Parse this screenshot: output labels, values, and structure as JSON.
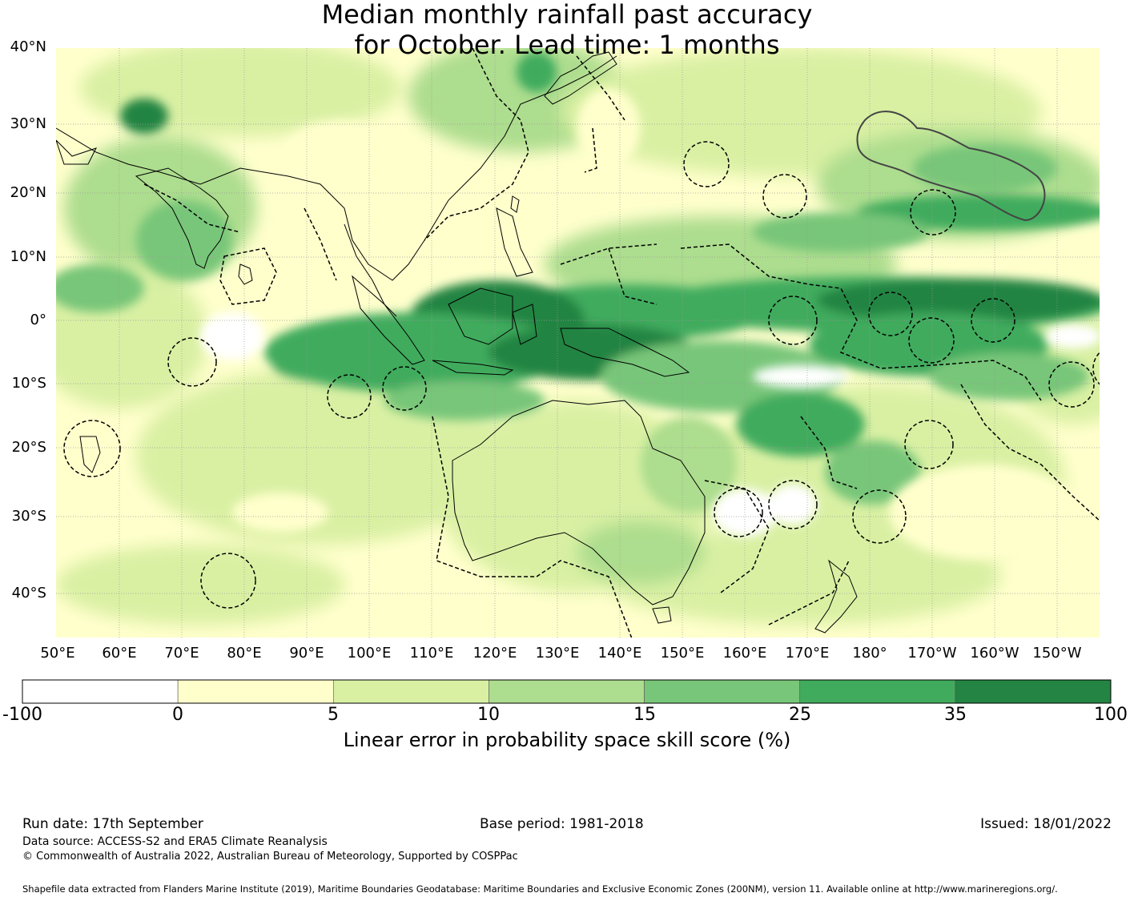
{
  "title": {
    "line1": "Median monthly rainfall past accuracy",
    "line2": "for October. Lead time: 1 months"
  },
  "map": {
    "lat_labels": [
      "40°N",
      "30°N",
      "20°N",
      "10°N",
      "0°",
      "10°S",
      "20°S",
      "30°S",
      "40°S"
    ],
    "lon_labels": [
      "50°E",
      "60°E",
      "70°E",
      "80°E",
      "90°E",
      "100°E",
      "110°E",
      "120°E",
      "130°E",
      "140°E",
      "150°E",
      "160°E",
      "170°E",
      "180°",
      "170°W",
      "160°W",
      "150°W"
    ]
  },
  "legend": {
    "ticks": [
      "-100",
      "0",
      "5",
      "10",
      "15",
      "25",
      "35",
      "100"
    ],
    "colors": [
      "#ffffff",
      "#ffffcc",
      "#d9f0a3",
      "#addd8e",
      "#78c679",
      "#41ab5d",
      "#238443"
    ],
    "label": "Linear error in probability space skill score (%)"
  },
  "footer": {
    "run_date": "Run date: 17th September",
    "base_period": "Base period: 1981-2018",
    "issued": "Issued: 18/01/2022",
    "data_source": "Data source: ACCESS-S2 and ERA5 Climate Reanalysis",
    "copyright": "© Commonwealth of Australia 2022, Australian Bureau of Meteorology, Supported by COSPPac",
    "shapefile": "Shapefile data extracted from Flanders Marine Institute (2019), Maritime Boundaries Geodatabase: Maritime Boundaries and Exclusive Economic Zones (200NM), version 11. Available online at http://www.marineregions.org/."
  }
}
